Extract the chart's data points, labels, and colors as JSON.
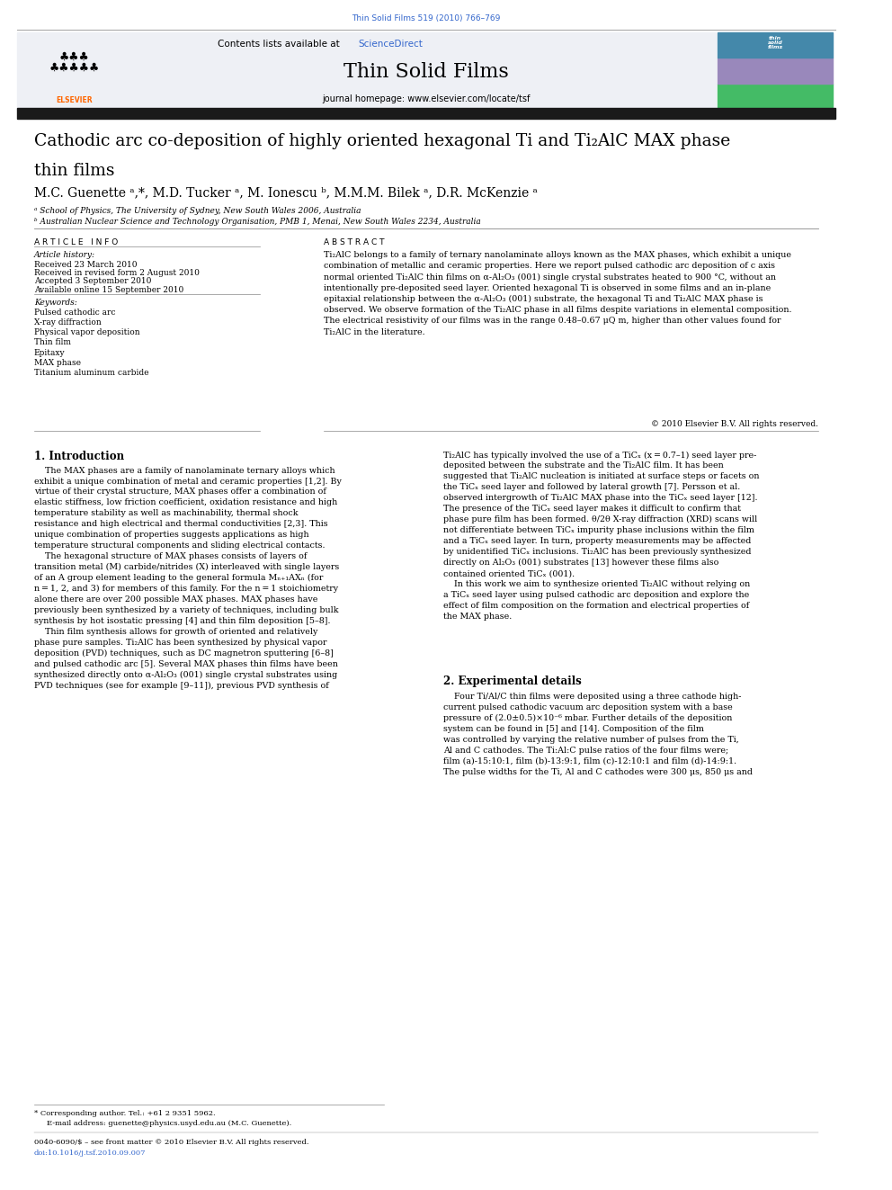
{
  "page_width": 9.92,
  "page_height": 13.23,
  "bg_color": "#ffffff",
  "header_link_color": "#3366cc",
  "journal_name": "Thin Solid Films",
  "journal_citation": "Thin Solid Films 519 (2010) 766–769",
  "contents_text": "Contents lists available at ",
  "sciencedirect_text": "ScienceDirect",
  "journal_homepage": "journal homepage: www.elsevier.com/locate/tsf",
  "title_line1": "Cathodic arc co-deposition of highly oriented hexagonal Ti and Ti₂AlC MAX phase",
  "title_line2": "thin films",
  "authors": "M.C. Guenette ᵃ,*, M.D. Tucker ᵃ, M. Ionescu ᵇ, M.M.M. Bilek ᵃ, D.R. McKenzie ᵃ",
  "affil_a": "ᵃ School of Physics, The University of Sydney, New South Wales 2006, Australia",
  "affil_b": "ᵇ Australian Nuclear Science and Technology Organisation, PMB 1, Menai, New South Wales 2234, Australia",
  "article_info_label": "A R T I C L E   I N F O",
  "abstract_label": "A B S T R A C T",
  "article_history_label": "Article history:",
  "received1": "Received 23 March 2010",
  "received2": "Received in revised form 2 August 2010",
  "accepted": "Accepted 3 September 2010",
  "available": "Available online 15 September 2010",
  "keywords_label": "Keywords:",
  "keywords": [
    "Pulsed cathodic arc",
    "X-ray diffraction",
    "Physical vapor deposition",
    "Thin film",
    "Epitaxy",
    "MAX phase",
    "Titanium aluminum carbide"
  ],
  "abstract_text": "Ti₂AlC belongs to a family of ternary nanolaminate alloys known as the MAX phases, which exhibit a unique combination of metallic and ceramic properties. Here we report pulsed cathodic arc deposition of c axis normal oriented Ti₂AlC thin films on α-Al₂O₃ (001) single crystal substrates heated to 900 °C, without an intentionally pre-deposited seed layer. Oriented hexagonal Ti is observed in some films and an in-plane epitaxial relationship between the α-Al₂O₃ (001) substrate, the hexagonal Ti and Ti₂AlC MAX phase is observed. We observe formation of the Ti₂AlC phase in all films despite variations in elemental composition. The electrical resistivity of our films was in the range 0.48–0.67 μQ m, higher than other values found for Ti₂AlC in the literature.",
  "copyright": "© 2010 Elsevier B.V. All rights reserved.",
  "section1_title": "1. Introduction",
  "section2_title": "2. Experimental details",
  "footnote_corresp": "Corresponding author. Tel.: +61 2 9351 5962.",
  "footnote_email": "E-mail address: guenette@physics.usyd.edu.au (M.C. Guenette).",
  "footnote_issn": "0040-6090/$ – see front matter © 2010 Elsevier B.V. All rights reserved.",
  "footnote_doi": "doi:10.1016/j.tsf.2010.09.007",
  "thick_bar_color": "#1a1a1a",
  "elsevier_orange": "#ff6600",
  "header_link_color2": "#2255aa"
}
